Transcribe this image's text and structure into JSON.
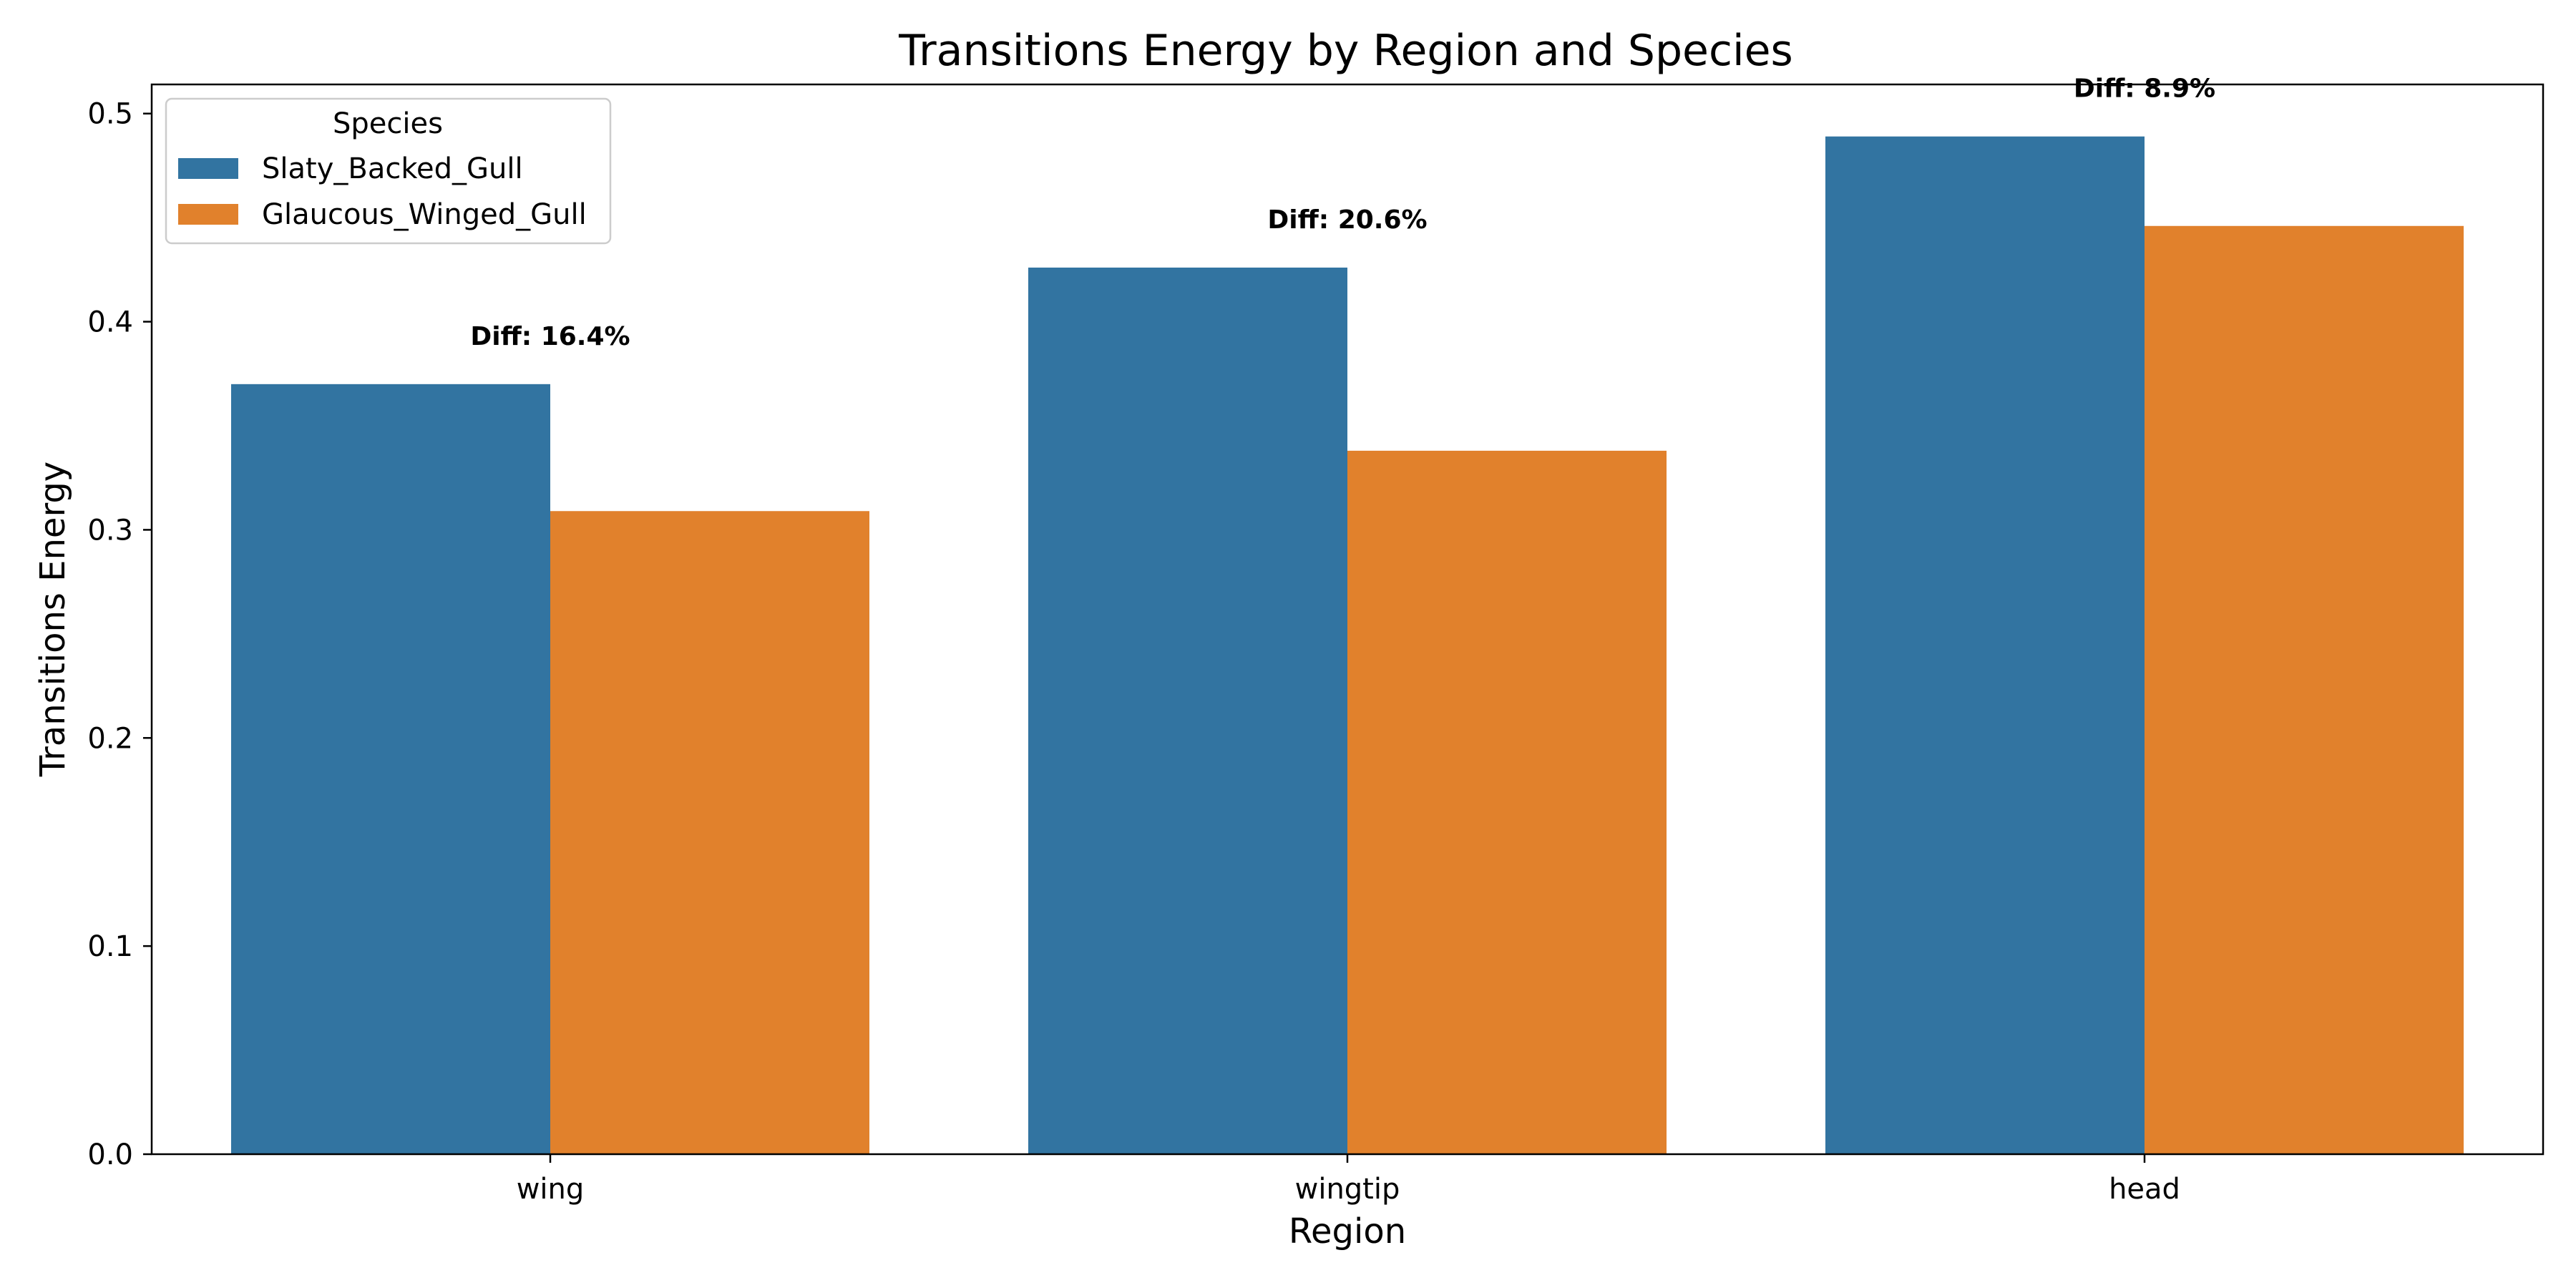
{
  "chart_data": {
    "type": "bar",
    "title": "Transitions Energy by Region and Species",
    "xlabel": "Region",
    "ylabel": "Transitions Energy",
    "categories": [
      "wing",
      "wingtip",
      "head"
    ],
    "series": [
      {
        "name": "Slaty_Backed_Gull",
        "color": "#3274a1",
        "values": [
          0.37,
          0.426,
          0.489
        ]
      },
      {
        "name": "Glaucous_Winged_Gull",
        "color": "#e1812c",
        "values": [
          0.309,
          0.338,
          0.446
        ]
      }
    ],
    "annotations": [
      "Diff: 16.4%",
      "Diff: 20.6%",
      "Diff: 8.9%"
    ],
    "ylim": [
      0,
      0.514
    ],
    "yticks": [
      0.0,
      0.1,
      0.2,
      0.3,
      0.4,
      0.5
    ],
    "ytick_labels": [
      "0.0",
      "0.1",
      "0.2",
      "0.3",
      "0.4",
      "0.5"
    ],
    "grid": false,
    "legend": {
      "title": "Species",
      "placement": "top-left"
    }
  }
}
